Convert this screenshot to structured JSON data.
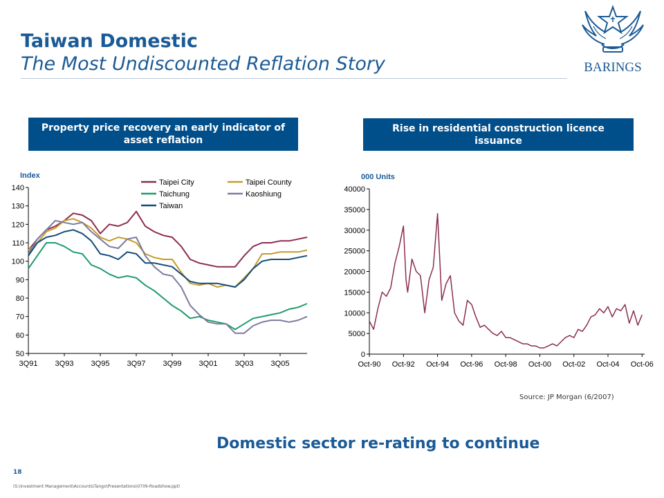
{
  "header": {
    "title": "Taiwan Domestic",
    "subtitle": "The Most Undiscounted Reflation Story"
  },
  "logo": {
    "text": "BARINGS",
    "icon": "star-wings-crest-icon",
    "color": "#1a5a96"
  },
  "banners": {
    "left": "Property price recovery an early indicator of asset reflation",
    "right": "Rise in residential construction licence issuance"
  },
  "source": "Source: JP Morgan (6/2007)",
  "tagline": "Domestic sector re-rating to continue",
  "footer": {
    "page_number": "18",
    "file_path": "(S:\\Investment Management\\Accounts\\Tango\\Presentations\\0709-Roadshow.ppt)"
  },
  "chart_data": [
    {
      "type": "line",
      "title": "",
      "ylabel": "Index",
      "xlabel": "",
      "ylim": [
        50,
        140
      ],
      "yticks": [
        50,
        60,
        70,
        80,
        90,
        100,
        110,
        120,
        130,
        140
      ],
      "xlim": [
        1991.5,
        2007.0
      ],
      "x_tick_labels": [
        "3Q91",
        "3Q93",
        "3Q95",
        "3Q97",
        "3Q99",
        "3Q01",
        "3Q03",
        "3Q05"
      ],
      "x_tick_values": [
        1991.5,
        1993.5,
        1995.5,
        1997.5,
        1999.5,
        2001.5,
        2003.5,
        2005.5
      ],
      "legend_position": "top-right",
      "series": [
        {
          "name": "Taipei City",
          "color": "#8b2d4e",
          "x": [
            1991.5,
            1992.0,
            1992.5,
            1993.0,
            1993.5,
            1994.0,
            1994.5,
            1995.0,
            1995.5,
            1996.0,
            1996.5,
            1997.0,
            1997.5,
            1998.0,
            1998.5,
            1999.0,
            1999.5,
            2000.0,
            2000.5,
            2001.0,
            2001.5,
            2002.0,
            2002.5,
            2003.0,
            2003.5,
            2004.0,
            2004.5,
            2005.0,
            2005.5,
            2006.0,
            2006.5,
            2007.0
          ],
          "y": [
            106,
            112,
            117,
            119,
            122,
            126,
            125,
            122,
            115,
            120,
            119,
            121,
            127,
            119,
            116,
            114,
            113,
            108,
            101,
            99,
            98,
            97,
            97,
            97,
            103,
            108,
            110,
            110,
            111,
            111,
            112,
            113
          ]
        },
        {
          "name": "Taipei County",
          "color": "#c59a2a",
          "x": [
            1991.5,
            1992.0,
            1992.5,
            1993.0,
            1993.5,
            1994.0,
            1994.5,
            1995.0,
            1995.5,
            1996.0,
            1996.5,
            1997.0,
            1997.5,
            1998.0,
            1998.5,
            1999.0,
            1999.5,
            2000.0,
            2000.5,
            2001.0,
            2001.5,
            2002.0,
            2002.5,
            2003.0,
            2003.5,
            2004.0,
            2004.5,
            2005.0,
            2005.5,
            2006.0,
            2006.5,
            2007.0
          ],
          "y": [
            106,
            110,
            116,
            118,
            122,
            123,
            121,
            118,
            113,
            111,
            113,
            112,
            110,
            104,
            102,
            101,
            101,
            94,
            88,
            87,
            88,
            86,
            87,
            86,
            91,
            96,
            104,
            104,
            105,
            105,
            105,
            106
          ]
        },
        {
          "name": "Taichung",
          "color": "#1d9a6c",
          "x": [
            1991.5,
            1992.0,
            1992.5,
            1993.0,
            1993.5,
            1994.0,
            1994.5,
            1995.0,
            1995.5,
            1996.0,
            1996.5,
            1997.0,
            1997.5,
            1998.0,
            1998.5,
            1999.0,
            1999.5,
            2000.0,
            2000.5,
            2001.0,
            2001.5,
            2002.0,
            2002.5,
            2003.0,
            2003.5,
            2004.0,
            2004.5,
            2005.0,
            2005.5,
            2006.0,
            2006.5,
            2007.0
          ],
          "y": [
            96,
            103,
            110,
            110,
            108,
            105,
            104,
            98,
            96,
            93,
            91,
            92,
            91,
            87,
            84,
            80,
            76,
            73,
            69,
            70,
            68,
            67,
            66,
            63,
            66,
            69,
            70,
            71,
            72,
            74,
            75,
            77
          ]
        },
        {
          "name": "Kaoshiung",
          "color": "#7b7b9f",
          "x": [
            1991.5,
            1992.0,
            1992.5,
            1993.0,
            1993.5,
            1994.0,
            1994.5,
            1995.0,
            1995.5,
            1996.0,
            1996.5,
            1997.0,
            1997.5,
            1998.0,
            1998.5,
            1999.0,
            1999.5,
            2000.0,
            2000.5,
            2001.0,
            2001.5,
            2002.0,
            2002.5,
            2003.0,
            2003.5,
            2004.0,
            2004.5,
            2005.0,
            2005.5,
            2006.0,
            2006.5,
            2007.0
          ],
          "y": [
            104,
            112,
            117,
            122,
            121,
            120,
            121,
            116,
            112,
            108,
            107,
            112,
            113,
            103,
            97,
            93,
            92,
            86,
            76,
            71,
            67,
            66,
            66,
            61,
            61,
            65,
            67,
            68,
            68,
            67,
            68,
            70
          ]
        },
        {
          "name": "Taiwan",
          "color": "#124b78",
          "x": [
            1991.5,
            1992.0,
            1992.5,
            1993.0,
            1993.5,
            1994.0,
            1994.5,
            1995.0,
            1995.5,
            1996.0,
            1996.5,
            1997.0,
            1997.5,
            1998.0,
            1998.5,
            1999.0,
            1999.5,
            2000.0,
            2000.5,
            2001.0,
            2001.5,
            2002.0,
            2002.5,
            2003.0,
            2003.5,
            2004.0,
            2004.5,
            2005.0,
            2005.5,
            2006.0,
            2006.5,
            2007.0
          ],
          "y": [
            103,
            110,
            113,
            114,
            116,
            117,
            115,
            111,
            104,
            103,
            101,
            105,
            104,
            99,
            99,
            98,
            97,
            93,
            89,
            88,
            88,
            88,
            87,
            86,
            90,
            96,
            100,
            101,
            101,
            101,
            102,
            103
          ]
        }
      ]
    },
    {
      "type": "line",
      "title": "",
      "ylabel": "000 Units",
      "xlabel": "",
      "ylim": [
        0,
        40000
      ],
      "yticks": [
        0,
        5000,
        10000,
        15000,
        20000,
        25000,
        30000,
        35000,
        40000
      ],
      "xlim": [
        1990.75,
        2006.9
      ],
      "x_tick_labels": [
        "Oct-90",
        "Oct-92",
        "Oct-94",
        "Oct-96",
        "Oct-98",
        "Oct-00",
        "Oct-02",
        "Oct-04",
        "Oct-06"
      ],
      "x_tick_values": [
        1990.75,
        1992.75,
        1994.75,
        1996.75,
        1998.75,
        2000.75,
        2002.75,
        2004.75,
        2006.75
      ],
      "series": [
        {
          "name": "",
          "color": "#8b2d4e",
          "x": [
            1990.75,
            1991.0,
            1991.25,
            1991.5,
            1991.75,
            1992.0,
            1992.25,
            1992.5,
            1992.75,
            1992.9,
            1993.0,
            1993.25,
            1993.5,
            1993.75,
            1994.0,
            1994.25,
            1994.5,
            1994.75,
            1995.0,
            1995.25,
            1995.5,
            1995.75,
            1996.0,
            1996.25,
            1996.5,
            1996.75,
            1997.0,
            1997.25,
            1997.5,
            1997.75,
            1998.0,
            1998.25,
            1998.5,
            1998.75,
            1999.0,
            1999.25,
            1999.5,
            1999.75,
            2000.0,
            2000.25,
            2000.5,
            2000.75,
            2001.0,
            2001.25,
            2001.5,
            2001.75,
            2002.0,
            2002.25,
            2002.5,
            2002.75,
            2003.0,
            2003.25,
            2003.5,
            2003.75,
            2004.0,
            2004.25,
            2004.5,
            2004.75,
            2005.0,
            2005.25,
            2005.5,
            2005.75,
            2006.0,
            2006.25,
            2006.5,
            2006.75
          ],
          "y": [
            8000,
            6000,
            11000,
            15000,
            14000,
            16000,
            22000,
            26000,
            31000,
            18000,
            15000,
            23000,
            20000,
            19000,
            10000,
            18000,
            21000,
            34000,
            13000,
            17000,
            19000,
            10000,
            8000,
            7000,
            13000,
            12000,
            9000,
            6500,
            7000,
            6000,
            5000,
            4500,
            5500,
            4000,
            4000,
            3500,
            3000,
            2500,
            2500,
            2000,
            2000,
            1500,
            1500,
            2000,
            2500,
            2000,
            3000,
            4000,
            4500,
            4000,
            6000,
            5500,
            7000,
            9000,
            9500,
            11000,
            10000,
            11500,
            9000,
            11000,
            10500,
            12000,
            7500,
            10500,
            7000,
            9500
          ]
        }
      ]
    }
  ]
}
